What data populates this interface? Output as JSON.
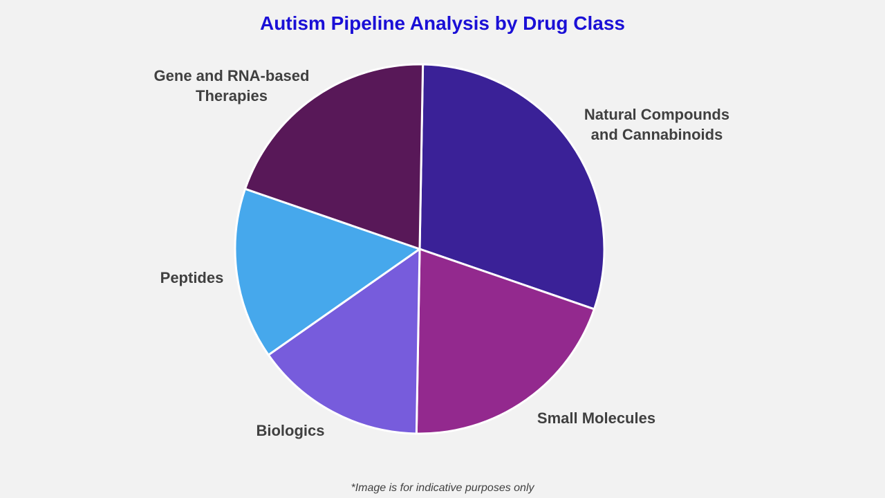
{
  "chart_data": {
    "type": "pie",
    "title": "Autism Pipeline Analysis by Drug Class",
    "categories": [
      "Natural Compounds and Cannabinoids",
      "Small Molecules",
      "Biologics",
      "Peptides",
      "Gene and RNA-based Therapies"
    ],
    "values": [
      30,
      20,
      15,
      15,
      20
    ],
    "colors": [
      "#3a2197",
      "#93298e",
      "#775cdc",
      "#46a8ec",
      "#581858"
    ],
    "start_angle_deg": 1,
    "direction": "clockwise",
    "footnote": "*Image is for indicative purposes only"
  }
}
